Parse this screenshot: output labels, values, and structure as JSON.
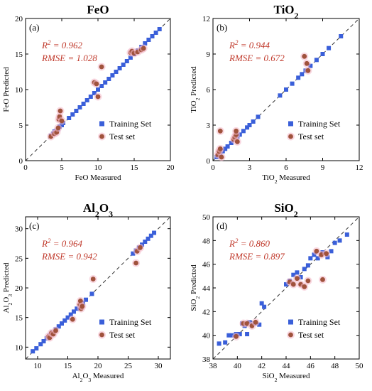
{
  "colors": {
    "training": "#3a5fd9",
    "test": "#a0523c",
    "annotation": "#c0392b",
    "highlight": "#f4b8c8",
    "axis": "#000000"
  },
  "chart_data": [
    {
      "type": "scatter",
      "panel_label": "(a)",
      "title": "FeO",
      "title_sub": "",
      "xlabel": "FeO Measured",
      "xlabel_sub": "",
      "xlabel_rest": "",
      "ylabel": "FeO Predicted",
      "ylabel_sub": "",
      "ylabel_rest": "",
      "xlim": [
        0,
        20
      ],
      "ylim": [
        0,
        20
      ],
      "xticks": [
        0,
        5,
        10,
        15,
        20
      ],
      "yticks": [
        0,
        5,
        10,
        15,
        20
      ],
      "r2_text": "= 0.962",
      "rmse_text": "RMSE = 1.028",
      "legend_position": "bottom-right",
      "series": [
        {
          "name": "Training Set",
          "marker": "square",
          "points": [
            [
              3.5,
              3.5
            ],
            [
              3.8,
              3.8
            ],
            [
              4.0,
              4.1
            ],
            [
              4.2,
              4.2
            ],
            [
              4.5,
              4.4
            ],
            [
              4.7,
              4.8
            ],
            [
              5.0,
              5.0
            ],
            [
              5.2,
              5.3
            ],
            [
              6.0,
              6.0
            ],
            [
              6.5,
              6.5
            ],
            [
              7.0,
              7.0
            ],
            [
              7.5,
              7.5
            ],
            [
              8.0,
              8.0
            ],
            [
              8.5,
              8.5
            ],
            [
              9.0,
              9.0
            ],
            [
              9.5,
              9.5
            ],
            [
              10.0,
              10.0
            ],
            [
              10.5,
              10.5
            ],
            [
              11.0,
              11.0
            ],
            [
              11.5,
              11.5
            ],
            [
              12.0,
              12.0
            ],
            [
              12.5,
              12.5
            ],
            [
              13.0,
              13.0
            ],
            [
              13.5,
              13.5
            ],
            [
              14.0,
              14.0
            ],
            [
              14.5,
              14.5
            ],
            [
              15.0,
              15.0
            ],
            [
              15.5,
              15.5
            ],
            [
              16.0,
              16.0
            ],
            [
              16.5,
              16.5
            ],
            [
              17.0,
              17.0
            ],
            [
              17.5,
              17.5
            ],
            [
              18.0,
              18.0
            ],
            [
              18.5,
              18.5
            ]
          ]
        },
        {
          "name": "Test set",
          "marker": "circle",
          "points": [
            [
              3.5,
              3.4
            ],
            [
              4.0,
              3.8
            ],
            [
              4.3,
              4.0
            ],
            [
              4.5,
              4.6
            ],
            [
              4.6,
              5.8
            ],
            [
              4.7,
              6.2
            ],
            [
              4.8,
              7.0
            ],
            [
              5.0,
              5.6
            ],
            [
              9.5,
              11.0
            ],
            [
              9.8,
              10.8
            ],
            [
              10.0,
              9.0
            ],
            [
              10.5,
              13.2
            ],
            [
              14.5,
              15.2
            ],
            [
              14.7,
              15.4
            ],
            [
              15.0,
              15.1
            ],
            [
              15.5,
              15.3
            ],
            [
              16.0,
              15.6
            ],
            [
              16.3,
              15.8
            ]
          ]
        }
      ]
    },
    {
      "type": "scatter",
      "panel_label": "(b)",
      "title": "TiO",
      "title_sub": "2",
      "xlabel": "TiO",
      "xlabel_sub": "2",
      "xlabel_rest": " Measured",
      "ylabel": "TiO",
      "ylabel_sub": "2",
      "ylabel_rest": " Predicted",
      "xlim": [
        0,
        12
      ],
      "ylim": [
        0,
        12
      ],
      "xticks": [
        0,
        3,
        6,
        9,
        12
      ],
      "yticks": [
        0,
        3,
        6,
        9,
        12
      ],
      "r2_text": "= 0.944",
      "rmse_text": "RMSE = 0.672",
      "legend_position": "bottom-right",
      "series": [
        {
          "name": "Training Set",
          "marker": "square",
          "points": [
            [
              0.3,
              0.3
            ],
            [
              0.4,
              0.4
            ],
            [
              0.5,
              0.5
            ],
            [
              0.6,
              0.6
            ],
            [
              0.8,
              0.8
            ],
            [
              1.0,
              1.0
            ],
            [
              1.2,
              1.2
            ],
            [
              1.5,
              1.5
            ],
            [
              1.8,
              1.8
            ],
            [
              2.0,
              2.0
            ],
            [
              2.2,
              2.2
            ],
            [
              2.5,
              2.5
            ],
            [
              2.8,
              2.8
            ],
            [
              3.0,
              3.0
            ],
            [
              3.3,
              3.3
            ],
            [
              3.7,
              3.7
            ],
            [
              5.5,
              5.5
            ],
            [
              6.0,
              6.0
            ],
            [
              6.5,
              6.5
            ],
            [
              7.0,
              7.0
            ],
            [
              7.3,
              7.3
            ],
            [
              7.6,
              7.6
            ],
            [
              8.0,
              8.0
            ],
            [
              8.5,
              8.5
            ],
            [
              9.0,
              9.0
            ],
            [
              9.5,
              9.5
            ],
            [
              10.5,
              10.5
            ]
          ]
        },
        {
          "name": "Test set",
          "marker": "circle",
          "points": [
            [
              0.4,
              0.5
            ],
            [
              0.5,
              0.8
            ],
            [
              0.6,
              1.0
            ],
            [
              0.6,
              2.5
            ],
            [
              0.7,
              0.3
            ],
            [
              1.7,
              1.8
            ],
            [
              1.8,
              2.0
            ],
            [
              1.9,
              2.2
            ],
            [
              1.9,
              2.5
            ],
            [
              2.0,
              1.6
            ],
            [
              7.5,
              8.8
            ],
            [
              7.7,
              8.2
            ],
            [
              7.8,
              7.6
            ]
          ]
        }
      ]
    },
    {
      "type": "scatter",
      "panel_label": "(c)",
      "title": "Al",
      "title_sub": "2",
      "title_mid": "O",
      "title_sub2": "3",
      "xlabel": "Al",
      "xlabel_sub": "2",
      "xlabel_mid": "O",
      "xlabel_sub2": "3",
      "xlabel_rest": " Measured",
      "ylabel": "Al",
      "ylabel_sub": "2",
      "ylabel_mid": "O",
      "ylabel_sub2": "3",
      "ylabel_rest": " Predicted",
      "xlim": [
        8,
        32
      ],
      "ylim": [
        8,
        32
      ],
      "xticks": [
        10,
        15,
        20,
        25,
        30
      ],
      "yticks": [
        10,
        15,
        20,
        25,
        30
      ],
      "r2_text": "= 0.964",
      "rmse_text": "RMSE = 0.942",
      "legend_position": "bottom-right",
      "series": [
        {
          "name": "Training Set",
          "marker": "square",
          "points": [
            [
              9.2,
              9.3
            ],
            [
              9.8,
              9.8
            ],
            [
              10.5,
              10.5
            ],
            [
              11.0,
              11.0
            ],
            [
              11.5,
              11.5
            ],
            [
              12.0,
              12.0
            ],
            [
              12.5,
              12.5
            ],
            [
              13.0,
              13.0
            ],
            [
              13.5,
              13.5
            ],
            [
              14.0,
              14.0
            ],
            [
              14.5,
              14.5
            ],
            [
              15.0,
              15.0
            ],
            [
              15.5,
              15.5
            ],
            [
              16.0,
              16.0
            ],
            [
              16.5,
              16.5
            ],
            [
              17.0,
              17.0
            ],
            [
              17.5,
              17.5
            ],
            [
              18.0,
              18.0
            ],
            [
              19.0,
              19.0
            ],
            [
              25.8,
              25.8
            ],
            [
              26.3,
              26.3
            ],
            [
              26.8,
              26.8
            ],
            [
              27.3,
              27.3
            ],
            [
              27.8,
              27.8
            ],
            [
              28.3,
              28.3
            ],
            [
              28.8,
              28.8
            ],
            [
              29.3,
              29.3
            ]
          ]
        },
        {
          "name": "Test set",
          "marker": "circle",
          "points": [
            [
              11.8,
              11.8
            ],
            [
              12.0,
              11.6
            ],
            [
              12.3,
              12.4
            ],
            [
              12.6,
              12.2
            ],
            [
              13.0,
              12.8
            ],
            [
              15.8,
              14.7
            ],
            [
              17.0,
              17.2
            ],
            [
              17.1,
              17.8
            ],
            [
              17.2,
              16.5
            ],
            [
              17.4,
              16.9
            ],
            [
              19.2,
              21.5
            ],
            [
              26.3,
              24.2
            ],
            [
              26.5,
              26.2
            ],
            [
              27.0,
              26.8
            ]
          ]
        }
      ]
    },
    {
      "type": "scatter",
      "panel_label": "(d)",
      "title": "SiO",
      "title_sub": "2",
      "xlabel": "SiO",
      "xlabel_sub": "2",
      "xlabel_rest": " Measured",
      "ylabel": "SiO",
      "ylabel_sub": "2",
      "ylabel_rest": " Predicted",
      "xlim": [
        38,
        50
      ],
      "ylim": [
        38,
        50
      ],
      "xticks": [
        38,
        40,
        42,
        44,
        46,
        48,
        50
      ],
      "yticks": [
        38,
        40,
        42,
        44,
        46,
        48,
        50
      ],
      "r2_text": "= 0.860",
      "rmse_text": "RMSE = 0.897",
      "legend_position": "bottom-right",
      "series": [
        {
          "name": "Training Set",
          "marker": "square",
          "points": [
            [
              38.5,
              39.3
            ],
            [
              39.0,
              39.4
            ],
            [
              39.3,
              40.0
            ],
            [
              39.6,
              40.0
            ],
            [
              39.9,
              40.1
            ],
            [
              40.2,
              40.1
            ],
            [
              40.4,
              41.0
            ],
            [
              40.6,
              40.8
            ],
            [
              40.8,
              40.1
            ],
            [
              41.0,
              41.1
            ],
            [
              41.4,
              41.0
            ],
            [
              41.8,
              40.9
            ],
            [
              42.0,
              42.7
            ],
            [
              42.2,
              42.4
            ],
            [
              44.0,
              44.3
            ],
            [
              44.3,
              44.6
            ],
            [
              44.6,
              45.1
            ],
            [
              44.9,
              45.3
            ],
            [
              45.2,
              44.9
            ],
            [
              45.5,
              45.6
            ],
            [
              45.8,
              45.9
            ],
            [
              46.0,
              46.5
            ],
            [
              46.3,
              46.8
            ],
            [
              46.6,
              46.5
            ],
            [
              47.0,
              47.0
            ],
            [
              47.4,
              46.6
            ],
            [
              47.7,
              47.1
            ],
            [
              48.0,
              47.8
            ],
            [
              48.4,
              48.0
            ],
            [
              49.0,
              48.5
            ]
          ]
        },
        {
          "name": "Test set",
          "marker": "circle",
          "points": [
            [
              39.9,
              39.9
            ],
            [
              40.5,
              41.0
            ],
            [
              40.8,
              41.0
            ],
            [
              41.2,
              40.8
            ],
            [
              41.5,
              41.1
            ],
            [
              44.3,
              44.5
            ],
            [
              44.6,
              44.3
            ],
            [
              44.9,
              44.8
            ],
            [
              45.2,
              44.3
            ],
            [
              45.5,
              44.1
            ],
            [
              45.8,
              44.6
            ],
            [
              46.5,
              47.1
            ],
            [
              46.9,
              46.8
            ],
            [
              47.0,
              44.7
            ],
            [
              47.3,
              46.9
            ]
          ]
        }
      ]
    }
  ]
}
